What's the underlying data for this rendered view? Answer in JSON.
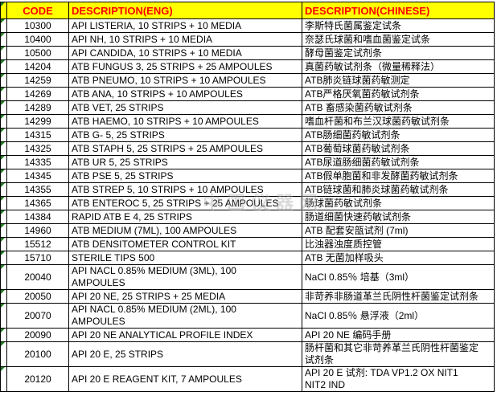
{
  "colors": {
    "header_bg": "#FFFF00",
    "header_text": "#FF0000",
    "grid_line": "#000000",
    "error_indicator_green": "#1E7B1E",
    "watermark_gray": "#9A9A9A"
  },
  "watermark": "中国仪器网",
  "table": {
    "headers": {
      "code": "CODE",
      "eng": "DESCRIPTION(ENG)",
      "chs": "DESCRIPTION(CHINESE)"
    },
    "rows": [
      {
        "code": "10300",
        "eng": "API LISTERIA, 10 STRIPS + 10 MEDIA",
        "chs": "李斯特氏菌属鉴定试条"
      },
      {
        "code": "10400",
        "eng": "API NH, 10 STRIPS + 10 MEDIA",
        "chs": "奈瑟氏球菌和嗜血菌鉴定试条"
      },
      {
        "code": "10500",
        "eng": "API CANDIDA, 10 STRIPS + 10 MEDIA",
        "chs": "酵母菌鉴定试剂条"
      },
      {
        "code": "14204",
        "eng": "ATB FUNGUS 3, 25 STRIPS + 25 AMPOULES",
        "chs": "真菌药敏试剂条（微量稀释法）"
      },
      {
        "code": "14259",
        "eng": "ATB PNEUMO, 10 STRIPS + 10 AMPOULES",
        "chs": "ATB肺炎链球菌药敏测定"
      },
      {
        "code": "14269",
        "eng": "ATB ANA, 10 STRIPS + 10 AMPOULES",
        "chs": "ATB严格厌氧菌药敏试剂条"
      },
      {
        "code": "14289",
        "eng": "ATB VET, 25 STRIPS",
        "chs": "ATB 畜感染菌药敏试剂条"
      },
      {
        "code": "14299",
        "eng": "ATB HAEMO, 10 STRIPS + 10 AMPOULES",
        "chs": "嗜血杆菌和布兰汉球菌药敏试剂条"
      },
      {
        "code": "14315",
        "eng": "ATB G- 5, 25 STRIPS",
        "chs": "ATB肠细菌药敏试剂条"
      },
      {
        "code": "14325",
        "eng": "ATB STAPH 5, 25 STRIPS + 25 AMPOULES",
        "chs": "ATB葡萄球菌药敏试剂条"
      },
      {
        "code": "14335",
        "eng": "ATB UR 5, 25 STRIPS",
        "chs": "ATB尿道肠细菌药敏试剂条"
      },
      {
        "code": "14345",
        "eng": "ATB PSE 5, 25 STRIPS",
        "chs": "ATB假单胞菌和非发酵菌药敏试剂条"
      },
      {
        "code": "14355",
        "eng": "ATB STREP 5, 10 STRIPS + 10 AMPOULES",
        "chs": "ATB链球菌和肺炎球菌药敏试剂条"
      },
      {
        "code": "14365",
        "eng": "ATB ENTEROC 5, 25 STRIPS + 25 AMPOULES",
        "chs": "肠球菌药敏试剂条"
      },
      {
        "code": "14384",
        "eng": "RAPID ATB E 4, 25 STRIPS",
        "chs": "肠道细菌快速药敏试剂条"
      },
      {
        "code": "14960",
        "eng": "ATB MEDIUM (7ML), 100 AMPOULES",
        "chs": "ATB 配套安瓿试剂 (7ml)"
      },
      {
        "code": "15512",
        "eng": "ATB DENSITOMETER CONTROL KIT",
        "chs": "比浊器浊度质控管"
      },
      {
        "code": "15710",
        "eng": "STERILE TIPS 500",
        "chs": "ATB 无菌加样吸头"
      },
      {
        "code": "20040",
        "eng": "API NACL 0.85% MEDIUM (3ML), 100\nAMPOULES",
        "chs": "NaCl 0.85％ 培基（3ml）"
      },
      {
        "code": "20050",
        "eng": "API 20 NE, 25 STRIPS + 25 MEDIA",
        "chs": "非苛养非肠道革兰氏阴性杆菌鉴定试剂条"
      },
      {
        "code": "20070",
        "eng": "API NACL 0.85% MEDIUM (2ML), 100\nAMPOULES",
        "chs": "NaCl 0.85％ 悬浮液（2ml）"
      },
      {
        "code": "20090",
        "eng": "API 20 NE ANALYTICAL PROFILE INDEX",
        "chs": "API 20 NE 编码手册"
      },
      {
        "code": "20100",
        "eng": "API 20 E, 25 STRIPS",
        "chs": "肠杆菌和其它非苛养革兰氏阴性杆菌鉴定\n试剂条"
      },
      {
        "code": "20120",
        "eng": "API 20 E REAGENT KIT, 7 AMPOULES",
        "chs": "API 20 E 试剂: TDA VP1.2 OX NIT1\nNIT2 IND"
      }
    ]
  }
}
